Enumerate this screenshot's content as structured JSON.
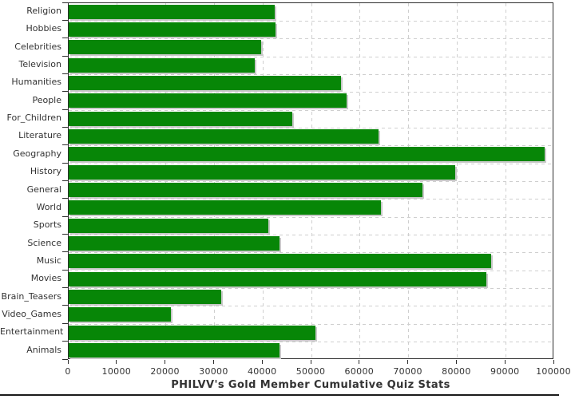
{
  "chart_data": {
    "type": "bar",
    "orientation": "horizontal",
    "title": "PHILVV's Gold Member Cumulative Quiz Stats",
    "categories": [
      "Religion",
      "Hobbies",
      "Celebrities",
      "Television",
      "Humanities",
      "People",
      "For_Children",
      "Literature",
      "Geography",
      "History",
      "General",
      "World",
      "Sports",
      "Science",
      "Music",
      "Movies",
      "Brain_Teasers",
      "Video_Games",
      "Entertainment",
      "Animals"
    ],
    "values": [
      42400,
      42600,
      39600,
      38300,
      56100,
      57200,
      46000,
      63800,
      98000,
      79600,
      72900,
      64300,
      41200,
      43400,
      87000,
      86100,
      31400,
      21100,
      50800,
      43500
    ],
    "xlabel": "",
    "ylabel": "",
    "xlim": [
      0,
      100000
    ],
    "x_tick_labels": [
      "0",
      "10000",
      "20000",
      "30000",
      "40000",
      "50000",
      "60000",
      "70000",
      "80000",
      "90000",
      "100000"
    ],
    "grid": "dashed vertical lines at every 10000; dashed horizontal lines at category boundaries",
    "legend_position": "none",
    "colors": {
      "bar": "#078607",
      "bar_shadow": "#c9c9c9",
      "grid": "#cfcfcf",
      "axis": "#2e2e2e",
      "text": "#333333",
      "background": "#ffffff",
      "bottom_border": "#1b1b1b"
    }
  }
}
